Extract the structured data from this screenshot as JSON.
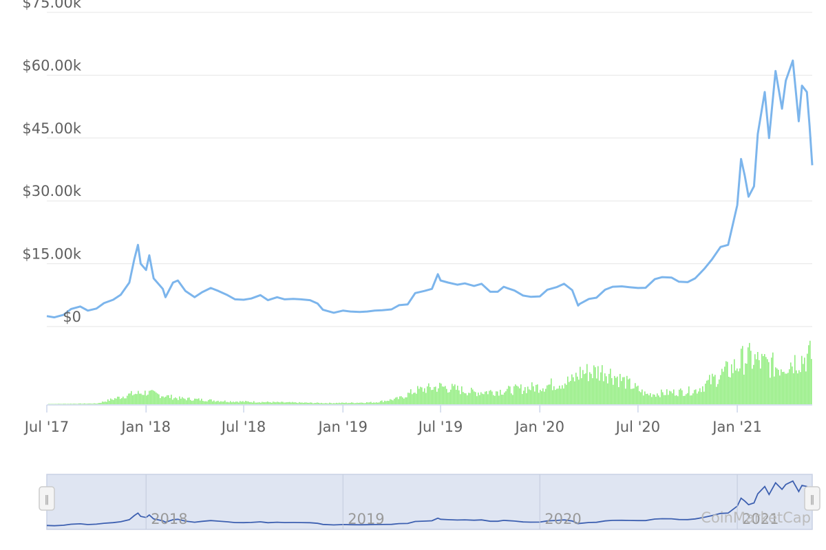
{
  "chart_data": {
    "type": "line",
    "title": "",
    "xlabel": "",
    "ylabel": "",
    "ylim": [
      0,
      75000
    ],
    "y_ticks": [
      "$0",
      "$15.00k",
      "$30.00k",
      "$45.00k",
      "$60.00k",
      "$75.00k"
    ],
    "x_ticks": [
      "Jul '17",
      "Jan '18",
      "Jul '18",
      "Jan '19",
      "Jul '19",
      "Jan '20",
      "Jul '20",
      "Jan '21"
    ],
    "x_range": [
      "2017-07-01",
      "2021-05-20"
    ],
    "grid": true,
    "colors": {
      "price": "#7cb5ec",
      "volume": "#90ed7d",
      "navigator_line": "#3c5fb0",
      "navigator_fill": "#dfe5f2"
    },
    "series": [
      {
        "kind": "price",
        "unit": "USD",
        "x": [
          "2017-07-01",
          "2017-07-15",
          "2017-08-01",
          "2017-08-15",
          "2017-09-01",
          "2017-09-15",
          "2017-10-01",
          "2017-10-15",
          "2017-11-01",
          "2017-11-15",
          "2017-12-01",
          "2017-12-10",
          "2017-12-17",
          "2017-12-22",
          "2018-01-01",
          "2018-01-07",
          "2018-01-15",
          "2018-02-01",
          "2018-02-06",
          "2018-02-20",
          "2018-03-01",
          "2018-03-15",
          "2018-04-01",
          "2018-04-15",
          "2018-05-01",
          "2018-05-15",
          "2018-06-01",
          "2018-06-15",
          "2018-07-01",
          "2018-07-15",
          "2018-08-01",
          "2018-08-15",
          "2018-09-01",
          "2018-09-15",
          "2018-10-01",
          "2018-10-15",
          "2018-11-01",
          "2018-11-15",
          "2018-11-25",
          "2018-12-15",
          "2019-01-01",
          "2019-01-15",
          "2019-02-01",
          "2019-02-15",
          "2019-03-01",
          "2019-03-15",
          "2019-04-01",
          "2019-04-15",
          "2019-05-01",
          "2019-05-15",
          "2019-06-01",
          "2019-06-15",
          "2019-06-26",
          "2019-07-01",
          "2019-07-15",
          "2019-08-01",
          "2019-08-15",
          "2019-09-01",
          "2019-09-15",
          "2019-10-01",
          "2019-10-15",
          "2019-10-26",
          "2019-11-01",
          "2019-11-15",
          "2019-12-01",
          "2019-12-15",
          "2020-01-01",
          "2020-01-15",
          "2020-02-01",
          "2020-02-15",
          "2020-03-01",
          "2020-03-12",
          "2020-03-15",
          "2020-04-01",
          "2020-04-15",
          "2020-05-01",
          "2020-05-15",
          "2020-06-01",
          "2020-06-15",
          "2020-07-01",
          "2020-07-15",
          "2020-08-01",
          "2020-08-15",
          "2020-09-01",
          "2020-09-15",
          "2020-10-01",
          "2020-10-15",
          "2020-11-01",
          "2020-11-15",
          "2020-12-01",
          "2020-12-15",
          "2021-01-01",
          "2021-01-08",
          "2021-01-15",
          "2021-01-22",
          "2021-02-01",
          "2021-02-08",
          "2021-02-21",
          "2021-03-01",
          "2021-03-13",
          "2021-03-25",
          "2021-04-01",
          "2021-04-14",
          "2021-04-25",
          "2021-05-01",
          "2021-05-10",
          "2021-05-15",
          "2021-05-20"
        ],
        "values": [
          2500,
          2200,
          2800,
          4200,
          4800,
          3800,
          4300,
          5600,
          6400,
          7600,
          10500,
          16000,
          19500,
          15000,
          13500,
          17000,
          11500,
          9000,
          7000,
          10500,
          11000,
          8500,
          7000,
          8200,
          9200,
          8500,
          7500,
          6500,
          6400,
          6700,
          7500,
          6300,
          7000,
          6500,
          6600,
          6500,
          6300,
          5500,
          4000,
          3300,
          3800,
          3600,
          3500,
          3600,
          3800,
          3900,
          4100,
          5100,
          5300,
          8000,
          8500,
          9000,
          12500,
          11000,
          10500,
          10000,
          10300,
          9700,
          10200,
          8300,
          8300,
          9500,
          9200,
          8600,
          7400,
          7100,
          7200,
          8800,
          9400,
          10200,
          8700,
          5000,
          5400,
          6600,
          6900,
          8800,
          9500,
          9600,
          9400,
          9200,
          9250,
          11300,
          11800,
          11700,
          10700,
          10600,
          11500,
          13800,
          16000,
          19000,
          19500,
          29000,
          40000,
          36000,
          31000,
          33500,
          46000,
          56000,
          45000,
          61000,
          52000,
          58700,
          63500,
          49000,
          57500,
          56000,
          48000,
          38500
        ]
      },
      {
        "kind": "volume",
        "unit": "USD",
        "x": [
          "2017-07-01",
          "2017-10-01",
          "2017-12-01",
          "2018-01-01",
          "2018-03-01",
          "2018-06-01",
          "2018-09-01",
          "2018-12-01",
          "2019-01-15",
          "2019-03-01",
          "2019-04-15",
          "2019-05-15",
          "2019-07-01",
          "2019-09-01",
          "2019-11-01",
          "2020-01-01",
          "2020-03-01",
          "2020-03-15",
          "2020-05-01",
          "2020-06-15",
          "2020-07-15",
          "2020-09-01",
          "2020-10-15",
          "2020-12-01",
          "2021-01-01",
          "2021-01-15",
          "2021-02-15",
          "2021-03-15",
          "2021-04-15",
          "2021-05-10",
          "2021-05-20"
        ],
        "values": [
          0.3,
          0.8,
          10,
          12,
          6,
          3,
          2,
          1.2,
          1.5,
          2,
          6,
          14,
          18,
          12,
          14,
          18,
          24,
          32,
          34,
          20,
          10,
          12,
          14,
          30,
          40,
          48,
          42,
          38,
          44,
          48,
          50
        ]
      }
    ]
  },
  "navigator": {
    "labels": [
      "2018",
      "2019",
      "2020",
      "2021"
    ],
    "handle_glyph": "‖"
  },
  "watermark": "CoinMarketCap"
}
